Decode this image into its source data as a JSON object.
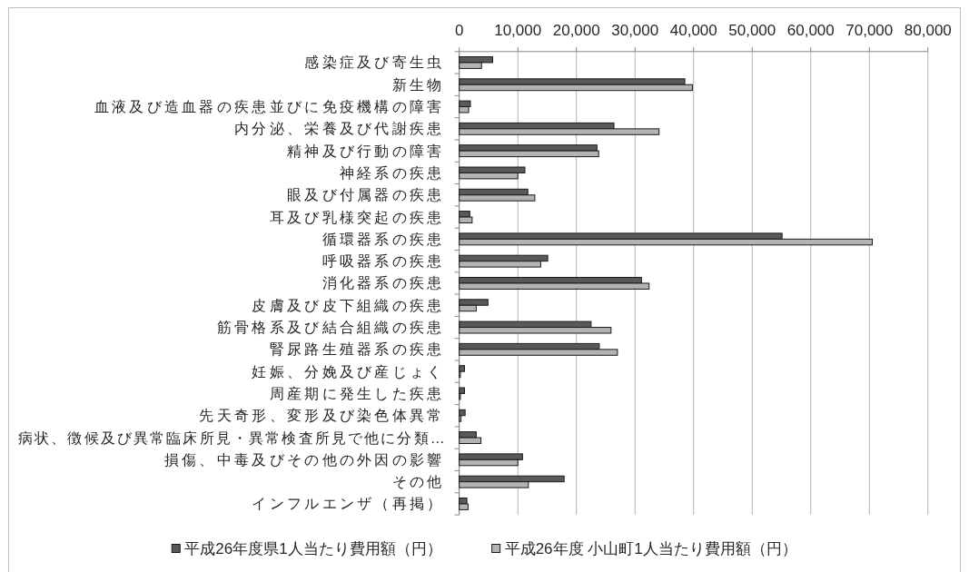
{
  "chart_data": {
    "type": "bar",
    "orientation": "horizontal",
    "categories": [
      "感染症及び寄生虫",
      "新生物",
      "血液及び造血器の疾患並びに免疫機構の障害",
      "内分泌、栄養及び代謝疾患",
      "精神及び行動の障害",
      "神経系の疾患",
      "眼及び付属器の疾患",
      "耳及び乳様突起の疾患",
      "循環器系の疾患",
      "呼吸器系の疾患",
      "消化器系の疾患",
      "皮膚及び皮下組織の疾患",
      "筋骨格系及び結合組織の疾患",
      "腎尿路生殖器系の疾患",
      "妊娠、分娩及び産じょく",
      "周産期に発生した疾患",
      "先天奇形、変形及び染色体異常",
      "病状、徴候及び異常臨床所見・異常検査所見で他に分類…",
      "損傷、中毒及びその他の外因の影響",
      "その他",
      "インフルエンザ（再掲）"
    ],
    "series": [
      {
        "name": "平成26年度県1人当たり費用額（円）",
        "color": "#595959",
        "values": [
          5700,
          38500,
          1900,
          26400,
          23500,
          11200,
          11700,
          1800,
          55100,
          15100,
          31100,
          4900,
          22500,
          23900,
          900,
          900,
          1000,
          2900,
          10800,
          17900,
          1300
        ]
      },
      {
        "name": "平成26年度 小山町1人当たり費用額（円）",
        "color": "#b3b3b3",
        "values": [
          3800,
          39800,
          1600,
          34100,
          23800,
          10000,
          12900,
          2200,
          70500,
          13900,
          32400,
          2900,
          25900,
          27000,
          200,
          200,
          300,
          3700,
          10000,
          11800,
          1500
        ]
      }
    ],
    "xlim": [
      0,
      80000
    ],
    "xticks": [
      0,
      {
        "value": 10000,
        "label": "10,000"
      },
      {
        "value": 20000,
        "label": "20,000"
      },
      {
        "value": 30000,
        "label": "30,000"
      },
      {
        "value": 40000,
        "label": "40,000"
      },
      {
        "value": 50000,
        "label": "50,000"
      },
      {
        "value": 60000,
        "label": "60,000"
      },
      {
        "value": 70000,
        "label": "70,000"
      },
      {
        "value": 80000,
        "label": "80,000"
      }
    ],
    "grid": "x",
    "legend": "bottom"
  }
}
